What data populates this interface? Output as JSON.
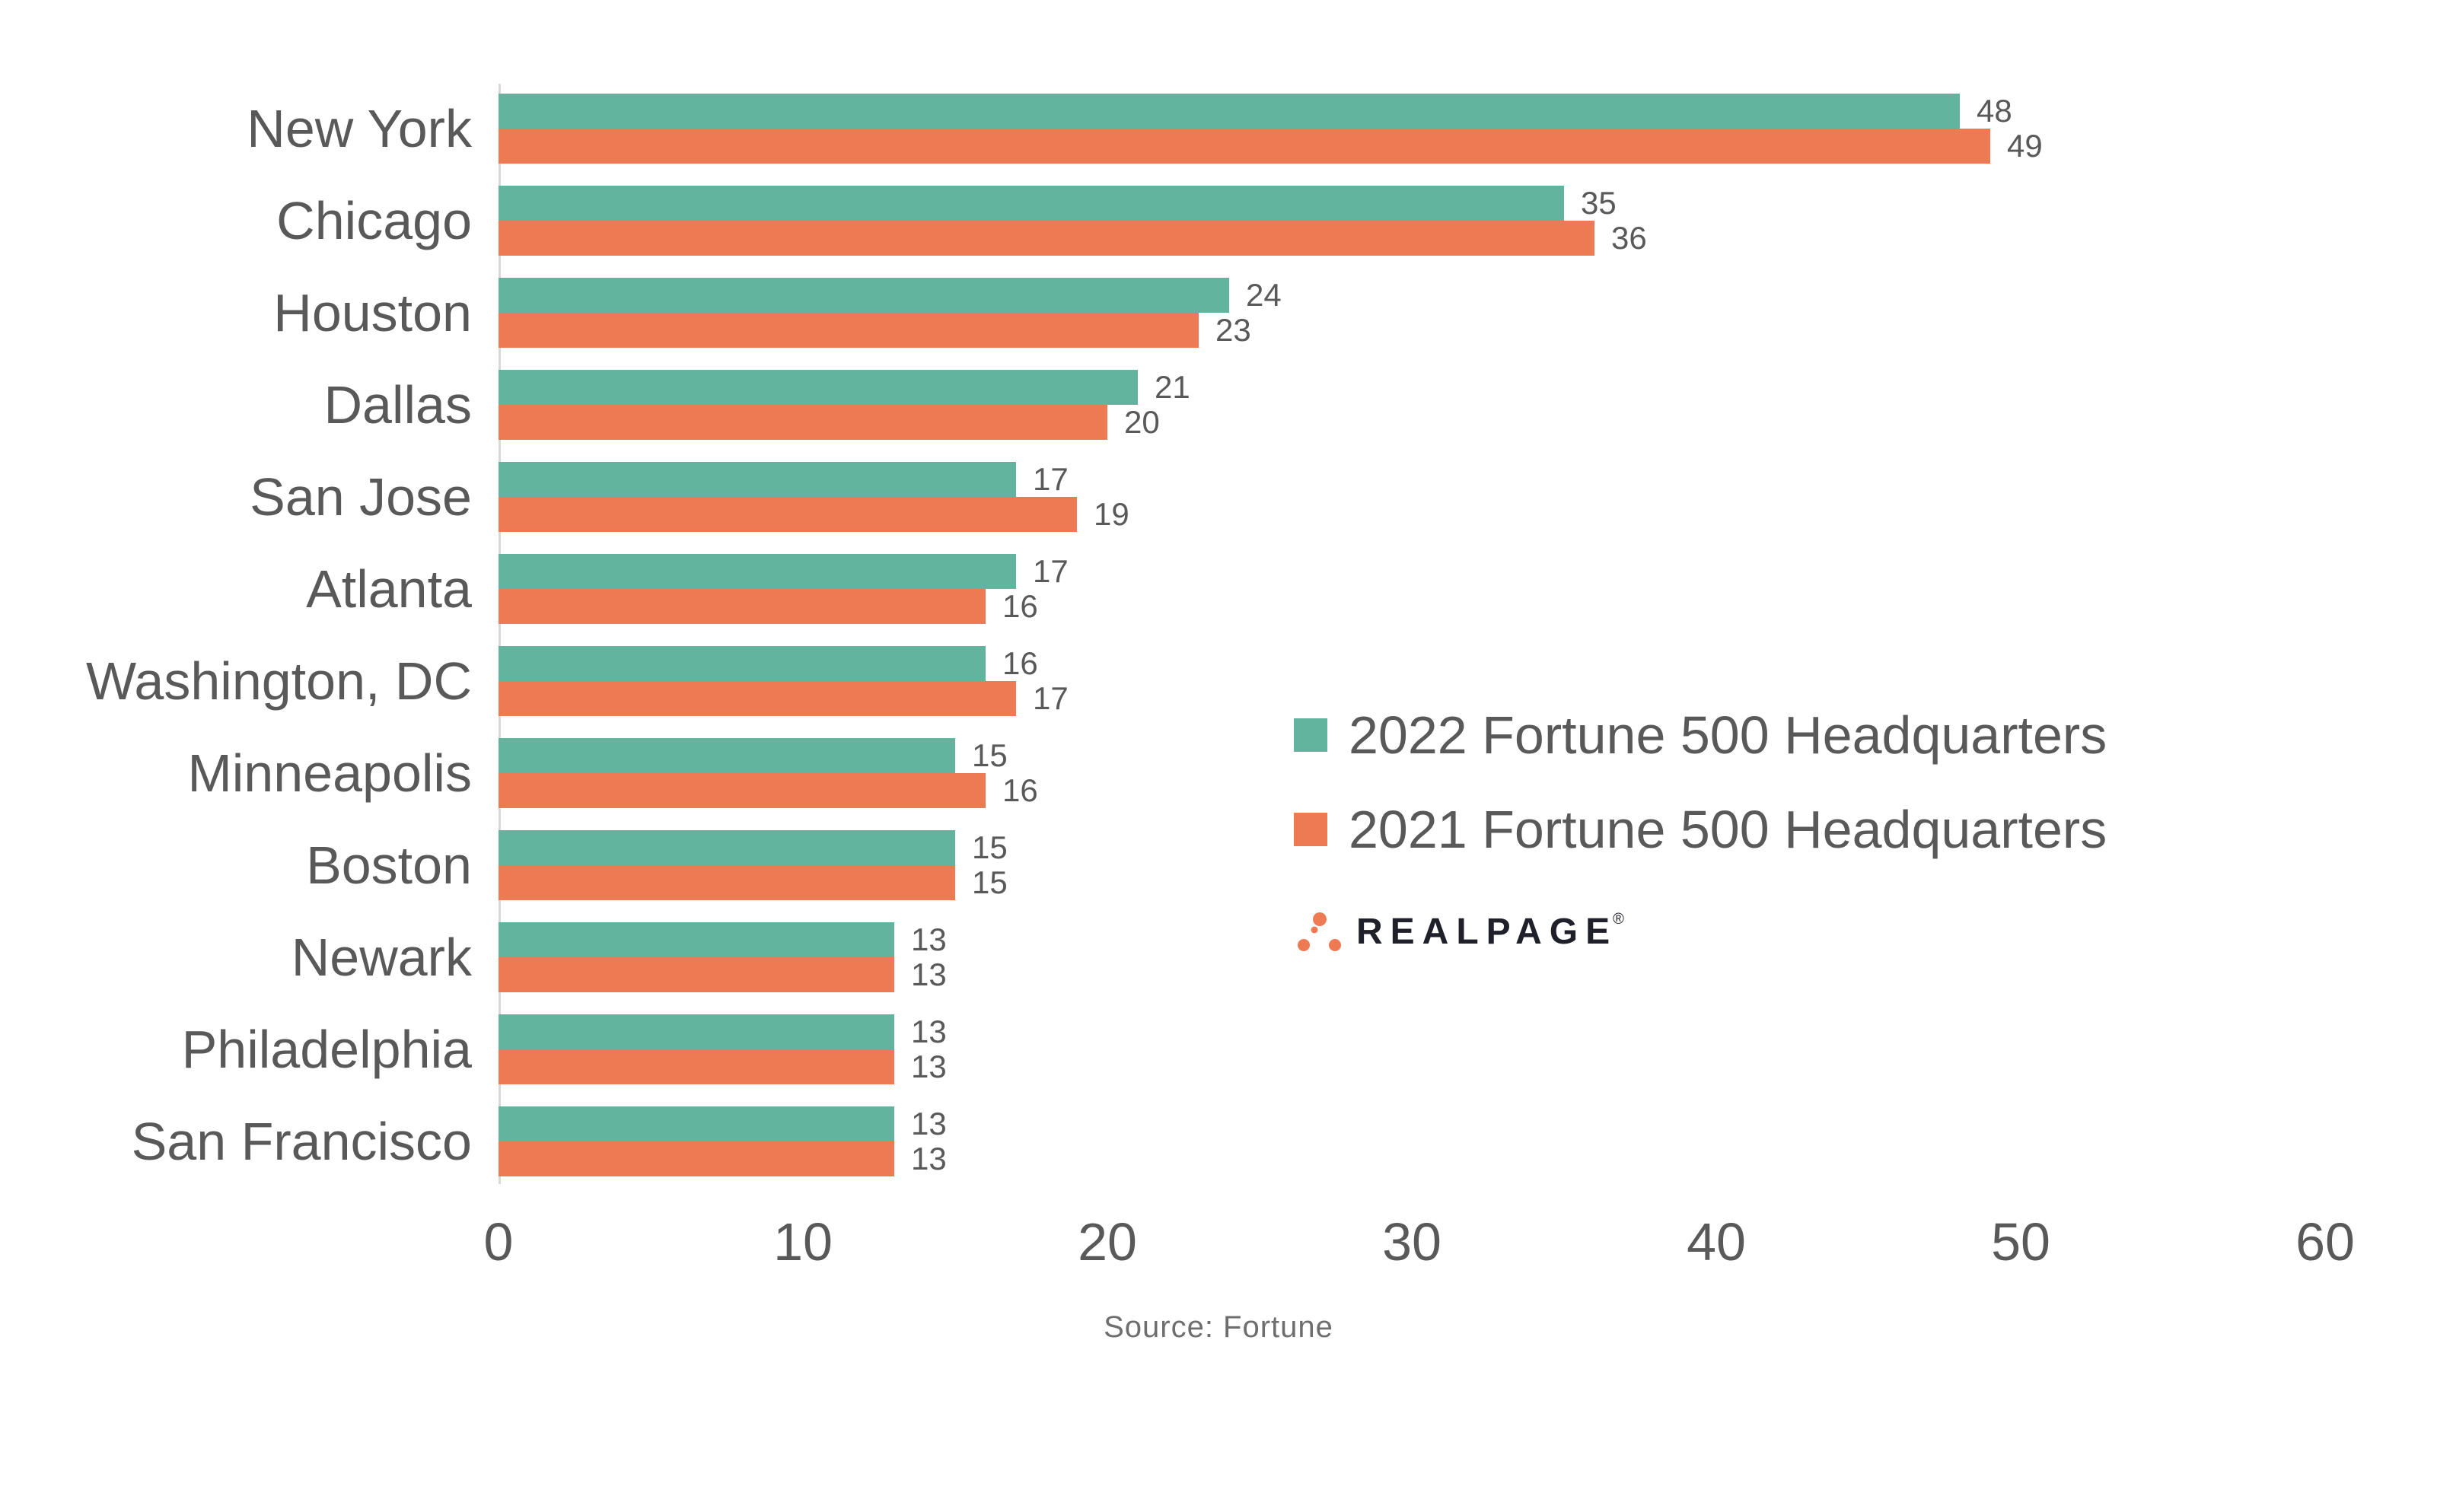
{
  "chart_data": {
    "type": "bar",
    "orientation": "horizontal",
    "title": "",
    "xlabel": "",
    "ylabel": "",
    "categories": [
      "New York",
      "Chicago",
      "Houston",
      "Dallas",
      "San Jose",
      "Atlanta",
      "Washington, DC",
      "Minneapolis",
      "Boston",
      "Newark",
      "Philadelphia",
      "San Francisco"
    ],
    "series": [
      {
        "name": "2022 Fortune 500 Headquarters",
        "color": "#62B49E",
        "values": [
          48,
          35,
          24,
          21,
          17,
          17,
          16,
          15,
          15,
          13,
          13,
          13
        ]
      },
      {
        "name": "2021 Fortune 500 Headquarters",
        "color": "#EE7A54",
        "values": [
          49,
          36,
          23,
          20,
          19,
          16,
          17,
          16,
          15,
          13,
          13,
          13
        ]
      }
    ],
    "xlim": [
      0,
      60
    ],
    "xticks": [
      0,
      10,
      20,
      30,
      40,
      50,
      60
    ],
    "grid": false,
    "value_labels": true,
    "legend_position": "right-middle",
    "source": "Source:  Fortune"
  },
  "branding": {
    "wordmark": "REALPAGE",
    "registered": "®",
    "dot_color": "#EE7A54",
    "text_color": "#20202A"
  },
  "colors": {
    "bar_2022": "#62B49E",
    "bar_2021": "#EE7A54",
    "label_text": "#595959",
    "value_text": "#595959",
    "axis_line": "#D8D8D8",
    "source_text": "#6E6E6E"
  }
}
